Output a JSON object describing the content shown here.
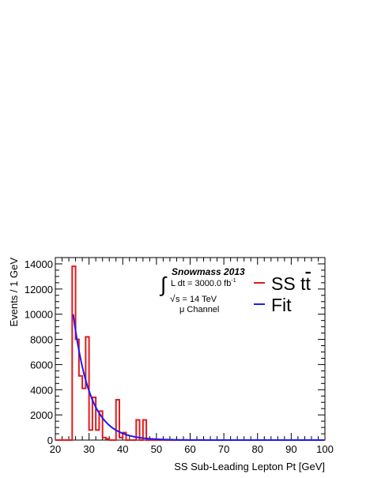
{
  "chart_data": {
    "type": "histogram",
    "xlabel": "SS Sub-Leading Lepton Pt [GeV]",
    "ylabel": "Events / 1 GeV",
    "xlim": [
      20,
      100
    ],
    "ylim": [
      0,
      14500
    ],
    "x_ticks": [
      20,
      30,
      40,
      50,
      60,
      70,
      80,
      90,
      100
    ],
    "y_ticks": [
      0,
      2000,
      4000,
      6000,
      8000,
      10000,
      12000,
      14000
    ],
    "annotation": {
      "experiment": "Snowmass 2013",
      "lumi_prefix": "L dt = 3000.0 fb",
      "lumi_exp": "-1",
      "energy": "s = 14 TeV",
      "channel": "μ Channel"
    },
    "legend": {
      "position": "upper-right",
      "entries": [
        {
          "label": "SS t",
          "label_suffix": "t",
          "color": "#e31a1c"
        },
        {
          "label": "Fit",
          "color": "#1a1aff"
        }
      ]
    },
    "series": [
      {
        "name": "SS tt",
        "kind": "step",
        "color": "#e31a1c",
        "bin_edges": [
          20,
          21,
          22,
          23,
          24,
          25,
          26,
          27,
          28,
          29,
          30,
          31,
          32,
          33,
          34,
          35,
          36,
          37,
          38,
          39,
          40,
          41,
          42,
          43,
          44,
          45,
          46,
          47,
          48,
          49,
          50
        ],
        "values": [
          0,
          0,
          0,
          0,
          0,
          13800,
          8000,
          5100,
          4100,
          8200,
          800,
          3400,
          800,
          2300,
          200,
          100,
          0,
          0,
          3200,
          200,
          600,
          0,
          0,
          0,
          1600,
          0,
          1600,
          0,
          0,
          0
        ]
      },
      {
        "name": "Fit",
        "kind": "exponential",
        "color": "#1a1aff",
        "x_start": 25.3,
        "x_end": 100,
        "amplitude": 10000,
        "decay_per_gev": 0.2
      }
    ]
  }
}
